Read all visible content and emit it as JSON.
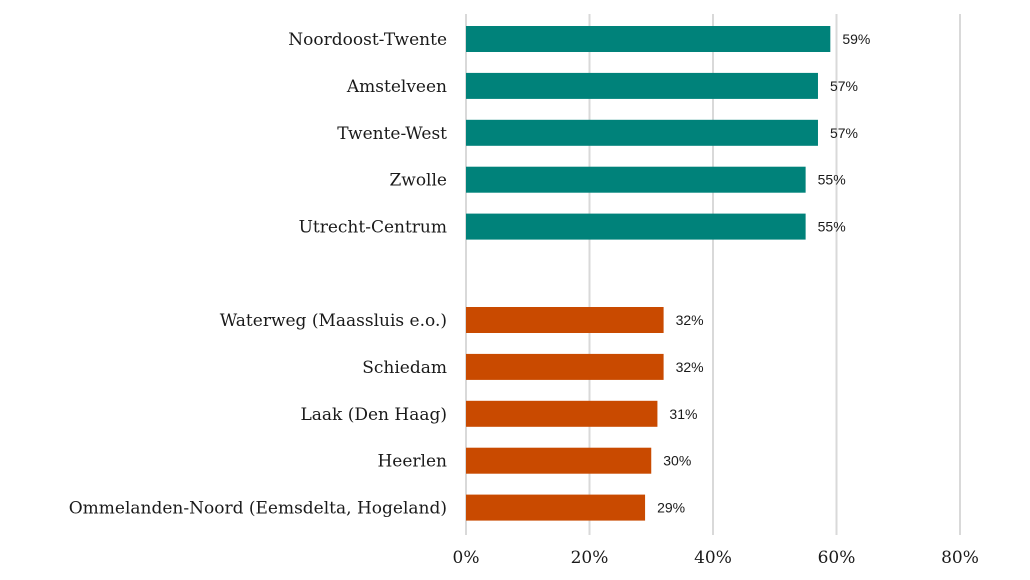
{
  "chart_data": {
    "type": "bar",
    "orientation": "horizontal",
    "title": "",
    "xlabel": "",
    "ylabel": "",
    "xlim": [
      0,
      80
    ],
    "xticks": [
      "0%",
      "20%",
      "40%",
      "60%",
      "80%"
    ],
    "grid": true,
    "series": [
      {
        "name": "top",
        "color": "#00827a",
        "categories": [
          "Noordoost-Twente",
          "Amstelveen",
          "Twente-West",
          "Zwolle",
          "Utrecht-Centrum"
        ],
        "values": [
          59,
          57,
          57,
          55,
          55
        ],
        "labels": [
          "59%",
          "57%",
          "57%",
          "55%",
          "55%"
        ]
      },
      {
        "name": "bottom",
        "color": "#c94a00",
        "categories": [
          "Waterweg (Maassluis e.o.)",
          "Schiedam",
          "Laak (Den Haag)",
          "Heerlen",
          "Ommelanden-Noord (Eemsdelta, Hogeland)"
        ],
        "values": [
          32,
          32,
          31,
          30,
          29
        ],
        "labels": [
          "32%",
          "32%",
          "31%",
          "30%",
          "29%"
        ]
      }
    ]
  }
}
